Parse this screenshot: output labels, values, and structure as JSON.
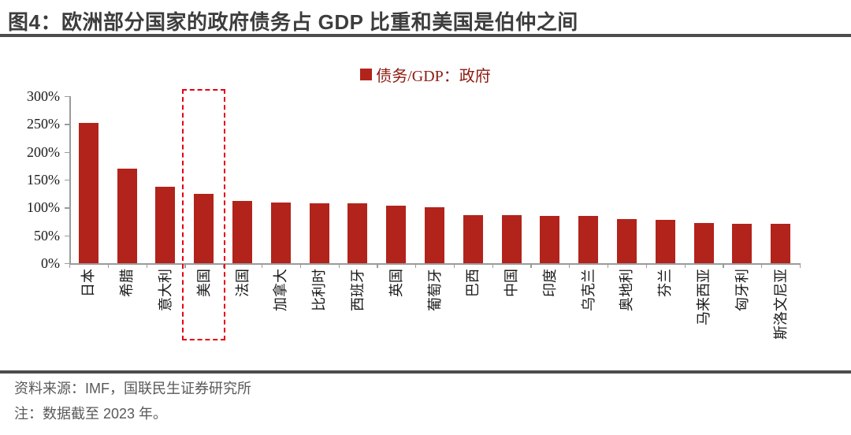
{
  "title": "图4：欧洲部分国家的政府债务占 GDP 比重和美国是伯仲之间",
  "legend": {
    "label": "债务/GDP：政府"
  },
  "footer": {
    "source": "资料来源：IMF，国联民生证券研究所",
    "note": "注：数据截至 2023 年。"
  },
  "colors": {
    "bar": "#B2231B",
    "legend_text": "#8E1B12",
    "highlight_border": "#E60012",
    "axis": "#9B9B9B",
    "title_text": "#3D3D3D",
    "rule": "#4D4D4D",
    "footer_text": "#595959"
  },
  "chart_data": {
    "type": "bar",
    "title": "债务/GDP：政府",
    "categories": [
      "日本",
      "希腊",
      "意大利",
      "美国",
      "法国",
      "加拿大",
      "比利时",
      "西班牙",
      "英国",
      "葡萄牙",
      "巴西",
      "中国",
      "印度",
      "乌克兰",
      "奥地利",
      "芬兰",
      "马来西亚",
      "匈牙利",
      "斯洛文尼亚"
    ],
    "values": [
      252,
      170,
      137,
      124,
      112,
      109,
      107,
      107,
      104,
      101,
      87,
      86,
      85,
      85,
      79,
      78,
      72,
      71,
      71
    ],
    "unit": "%",
    "xlabel": "",
    "ylabel": "",
    "ylim": [
      0,
      300
    ],
    "yticks": [
      "300%",
      "250%",
      "200%",
      "150%",
      "100%",
      "50%",
      "0%"
    ],
    "ytick_step": 50,
    "grid": false,
    "legend_position": "top-center",
    "bar_color": "#B2231B",
    "highlighted_category": "美国",
    "highlight_style": "red-dashed-box"
  }
}
